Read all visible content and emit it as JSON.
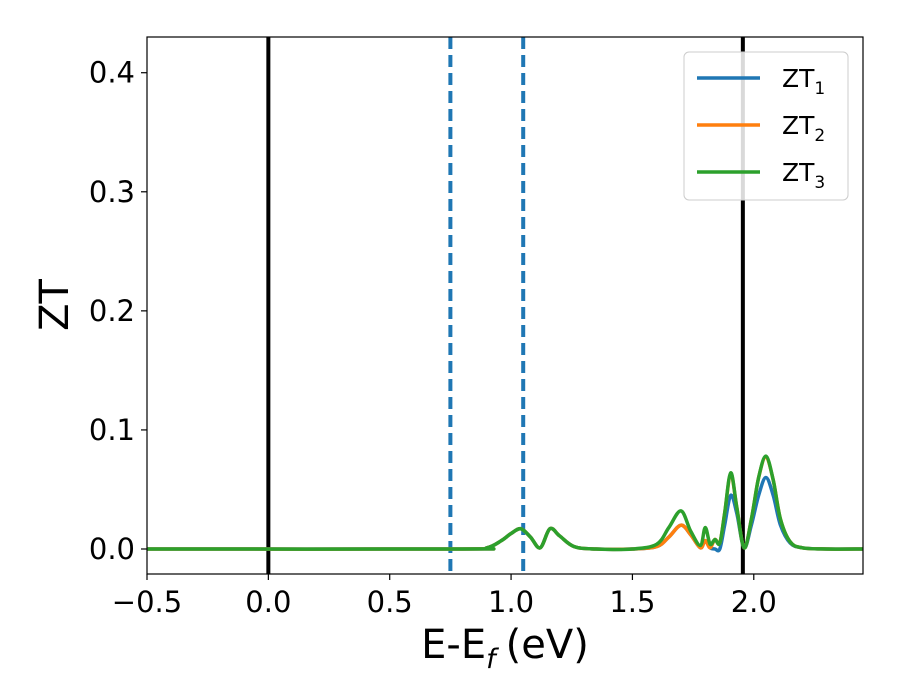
{
  "chart_data": {
    "type": "line",
    "xlabel": "E-E",
    "xlabel_sub": "f",
    "xlabel_unit": "(eV)",
    "ylabel": "ZT",
    "xlim": [
      -0.5,
      2.45
    ],
    "ylim": [
      -0.021,
      0.43
    ],
    "xticks": [
      -0.5,
      0.0,
      0.5,
      1.0,
      1.5,
      2.0
    ],
    "xtick_labels": [
      "−0.5",
      "0.0",
      "0.5",
      "1.0",
      "1.5",
      "2.0"
    ],
    "yticks": [
      0.0,
      0.1,
      0.2,
      0.3,
      0.4
    ],
    "ytick_labels": [
      "0.0",
      "0.1",
      "0.2",
      "0.3",
      "0.4"
    ],
    "grid": false,
    "legend_position": "top-right",
    "vlines": [
      {
        "x": 0.0,
        "color": "#000000",
        "style": "solid"
      },
      {
        "x": 1.955,
        "color": "#000000",
        "style": "solid"
      },
      {
        "x": 0.75,
        "color": "#1f77b4",
        "style": "dashed"
      },
      {
        "x": 1.05,
        "color": "#1f77b4",
        "style": "dashed"
      }
    ],
    "series": [
      {
        "name": "ZT",
        "sub": "1",
        "color": "#1f77b4",
        "x": [
          -0.5,
          0.8,
          0.9,
          0.96,
          1.0,
          1.04,
          1.08,
          1.12,
          1.16,
          1.2,
          1.26,
          1.35,
          1.5,
          1.6,
          1.65,
          1.7,
          1.74,
          1.78,
          1.8,
          1.82,
          1.84,
          1.86,
          1.88,
          1.905,
          1.93,
          1.96,
          1.99,
          2.02,
          2.05,
          2.08,
          2.11,
          2.15,
          2.2,
          2.3,
          2.45
        ],
        "y": [
          0,
          0,
          0.001,
          0.007,
          0.013,
          0.017,
          0.01,
          0.001,
          0.017,
          0.011,
          0.002,
          0,
          0,
          0.002,
          0.01,
          0.02,
          0.012,
          0.001,
          0.007,
          0.001,
          0.0,
          0.0,
          0.02,
          0.045,
          0.03,
          0.001,
          0.02,
          0.045,
          0.06,
          0.045,
          0.02,
          0.005,
          0.001,
          0,
          0
        ]
      },
      {
        "name": "ZT",
        "sub": "2",
        "color": "#ff7f0e",
        "x": [
          -0.5,
          0.8,
          0.9,
          0.96,
          1.0,
          1.04,
          1.08,
          1.12,
          1.16,
          1.2,
          1.26,
          1.35,
          1.5,
          1.6,
          1.65,
          1.7,
          1.74,
          1.78,
          1.8,
          1.82,
          1.84,
          1.86,
          1.88,
          1.905,
          1.93,
          1.96,
          1.99,
          2.02,
          2.05,
          2.08,
          2.11,
          2.15,
          2.2,
          2.3,
          2.45
        ],
        "y": [
          0,
          0,
          0.001,
          0.007,
          0.013,
          0.017,
          0.01,
          0.001,
          0.017,
          0.011,
          0.002,
          0,
          0,
          0.002,
          0.01,
          0.02,
          0.012,
          0.001,
          0.007,
          0.001,
          0.008,
          0.005,
          0.03,
          0.063,
          0.035,
          0.001,
          0.025,
          0.06,
          0.077,
          0.058,
          0.025,
          0.006,
          0.001,
          0,
          0
        ]
      },
      {
        "name": "ZT",
        "sub": "3",
        "color": "#2ca02c",
        "x": [
          -0.5,
          0.8,
          0.9,
          0.96,
          1.0,
          1.04,
          1.08,
          1.12,
          1.16,
          1.2,
          1.26,
          1.35,
          1.5,
          1.6,
          1.65,
          1.7,
          1.74,
          1.78,
          1.8,
          1.82,
          1.84,
          1.86,
          1.88,
          1.905,
          1.93,
          1.96,
          1.99,
          2.02,
          2.05,
          2.08,
          2.11,
          2.15,
          2.2,
          2.3,
          2.45
        ],
        "y": [
          0,
          0,
          0.001,
          0.007,
          0.013,
          0.017,
          0.01,
          0.001,
          0.017,
          0.011,
          0.002,
          0,
          0,
          0.004,
          0.018,
          0.032,
          0.015,
          0.003,
          0.018,
          0.004,
          0.008,
          0.005,
          0.03,
          0.064,
          0.035,
          0.001,
          0.025,
          0.06,
          0.078,
          0.058,
          0.025,
          0.006,
          0.001,
          0,
          0
        ]
      }
    ]
  }
}
